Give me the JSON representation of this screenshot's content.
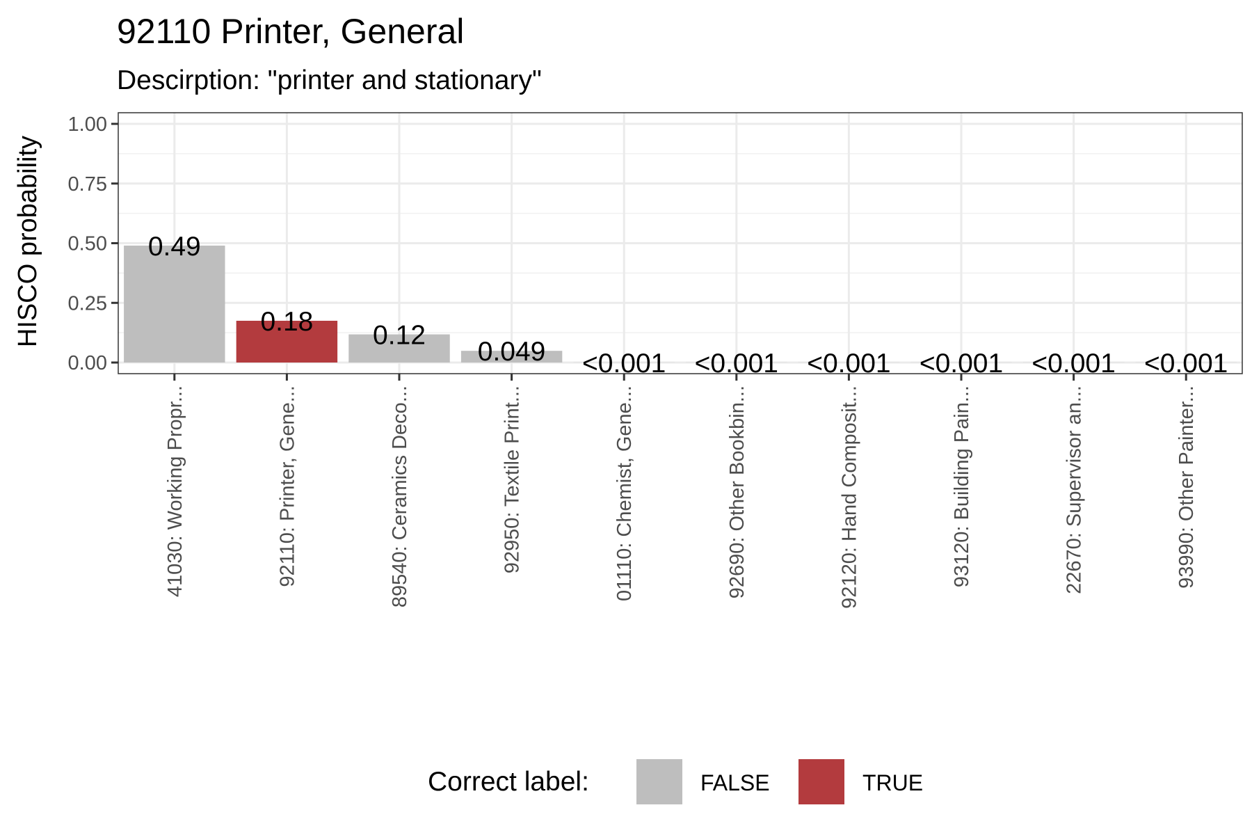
{
  "chart_data": {
    "type": "bar",
    "title": "92110 Printer, General",
    "subtitle": "Descirption: \"printer and stationary\"",
    "ylabel": "HISCO probability",
    "xlabel": "",
    "ylim": [
      0,
      1.05
    ],
    "yticks": [
      "0.00",
      "0.25",
      "0.50",
      "0.75",
      "1.00"
    ],
    "ytick_values": [
      0,
      0.25,
      0.5,
      0.75,
      1.0
    ],
    "grid": true,
    "categories": [
      "41030: Working Propr...",
      "92110: Printer, Gene...",
      "89540: Ceramics Deco...",
      "92950: Textile Print...",
      "01110: Chemist, Gene...",
      "92690: Other Bookbin...",
      "92120: Hand Composit...",
      "93120: Building Pain...",
      "22670: Supervisor an...",
      "93990: Other Painter..."
    ],
    "values": [
      0.49,
      0.175,
      0.118,
      0.049,
      0.0005,
      0.0005,
      0.0005,
      0.0005,
      0.0005,
      0.0005
    ],
    "data_labels": [
      "0.49",
      "0.18",
      "0.12",
      "0.049",
      "<0.001",
      "<0.001",
      "<0.001",
      "<0.001",
      "<0.001",
      "<0.001"
    ],
    "correct": [
      "FALSE",
      "TRUE",
      "FALSE",
      "FALSE",
      "FALSE",
      "FALSE",
      "FALSE",
      "FALSE",
      "FALSE",
      "FALSE"
    ],
    "legend": {
      "title": "Correct label:",
      "position": "bottom",
      "entries": [
        {
          "label": "FALSE",
          "color": "#bebebe"
        },
        {
          "label": "TRUE",
          "color": "#b33b3e"
        }
      ]
    },
    "colors": {
      "FALSE": "#bebebe",
      "TRUE": "#b33b3e"
    }
  }
}
